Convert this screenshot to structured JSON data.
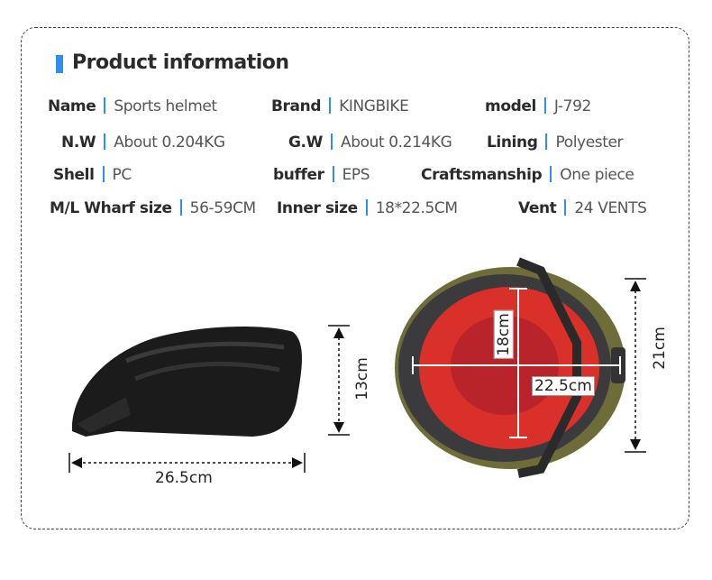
{
  "title": "Product information",
  "accent": "#2f8ff0",
  "specs": [
    {
      "label": "Name",
      "value": "Sports helmet"
    },
    {
      "label": "Brand",
      "value": "KINGBIKE"
    },
    {
      "label": "model",
      "value": "J-792"
    },
    {
      "label": "N.W",
      "value": "About 0.204KG"
    },
    {
      "label": "G.W",
      "value": "About 0.214KG"
    },
    {
      "label": "Lining",
      "value": "Polyester"
    },
    {
      "label": "Shell",
      "value": "PC"
    },
    {
      "label": "buffer",
      "value": "EPS"
    },
    {
      "label": "Craftsmanship",
      "value": "One piece"
    },
    {
      "label": "M/L Wharf size",
      "value": "56-59CM"
    },
    {
      "label": "Inner size",
      "value": "18*22.5CM"
    },
    {
      "label": "Vent",
      "value": "24 VENTS"
    }
  ],
  "dimensions": {
    "side_height": "13cm",
    "side_length": "26.5cm",
    "top_length": "21cm",
    "inner_length": "18cm",
    "inner_width": "22.5cm"
  }
}
